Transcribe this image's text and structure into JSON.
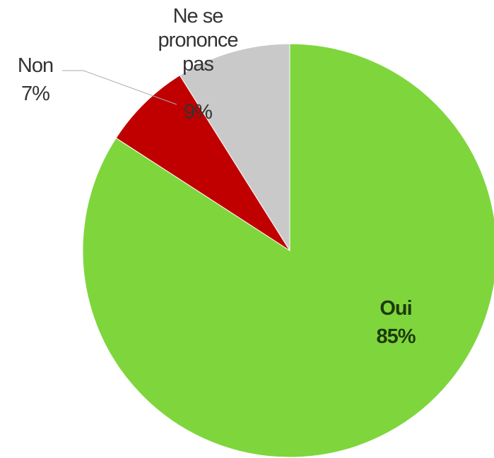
{
  "chart_data": {
    "type": "pie",
    "categories": [
      "Oui",
      "Non",
      "Ne se prononce pas"
    ],
    "values": [
      85,
      7,
      9
    ],
    "value_labels": [
      "85%",
      "7%",
      "9%"
    ],
    "colors": [
      "#7ed63c",
      "#c00000",
      "#c9c9c9"
    ]
  }
}
